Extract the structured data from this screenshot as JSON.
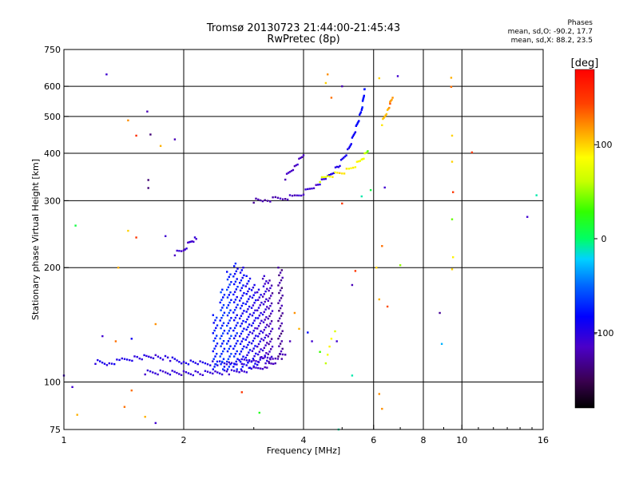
{
  "header": {
    "title_line1": "Tromsø 20130723 21:44:00-21:45:43",
    "title_line2": "RwPretec (8p)"
  },
  "stats": {
    "heading": "Phases",
    "line_o": "mean, sd,O: -90.2, 17.7",
    "line_x": "mean, sd,X:  88.2, 23.5"
  },
  "chart_data": {
    "type": "scatter",
    "title": "Tromsø 20130723 21:44:00-21:45:43",
    "subtitle": "RwPretec (8p)",
    "xlabel": "Frequency [MHz]",
    "ylabel": "Stationary phase Virtual Height [km]",
    "x_scale": "log",
    "y_scale": "log",
    "xlim": [
      1,
      16
    ],
    "ylim": [
      75,
      750
    ],
    "x_ticks": [
      1,
      2,
      4,
      6,
      8,
      10,
      16
    ],
    "x_tick_labels": [
      "1",
      "2",
      "4",
      "6",
      "8",
      "10",
      "16"
    ],
    "x_gridlines": [
      2,
      4,
      6,
      8,
      10
    ],
    "y_ticks": [
      75,
      100,
      200,
      300,
      400,
      500,
      600,
      750
    ],
    "y_tick_labels": [
      "75",
      "100",
      "200",
      "300",
      "400",
      "500",
      "600",
      "750"
    ],
    "y_gridlines": [
      100,
      200,
      300,
      400,
      500,
      600
    ],
    "colorbar": {
      "label": "[deg]",
      "range": [
        -180,
        180
      ],
      "ticks": [
        100,
        0,
        -100
      ],
      "tick_labels": [
        "100",
        "0",
        "-100"
      ]
    },
    "traces": [
      {
        "name": "E-region trace (O mode)",
        "x": [
          1.2,
          1.3,
          1.4,
          1.55,
          1.7,
          1.85,
          2.0,
          2.2,
          2.4,
          2.6,
          2.8,
          3.0,
          3.2,
          3.4,
          3.6
        ],
        "y": [
          113,
          112,
          114,
          116,
          117,
          115,
          113,
          112,
          112,
          112,
          113,
          114,
          115,
          116,
          118
        ],
        "phase": [
          -95,
          -95,
          -95,
          -100,
          -105,
          -100,
          -95,
          -95,
          -100,
          -105,
          -105,
          -110,
          -110,
          -115,
          -120
        ]
      },
      {
        "name": "Lower band trace",
        "x": [
          1.6,
          1.8,
          2.0,
          2.2,
          2.4,
          2.6,
          2.8,
          3.0,
          3.2,
          3.4
        ],
        "y": [
          106,
          106,
          105.5,
          105.5,
          106,
          106,
          107,
          108,
          110,
          112
        ],
        "phase": [
          -105,
          -105,
          -105,
          -105,
          -105,
          -105,
          -108,
          -110,
          -115,
          -120
        ]
      },
      {
        "name": "Es spread (vertical streaks)",
        "x": [
          2.4,
          2.5,
          2.6,
          2.7,
          2.8,
          2.9,
          3.0,
          3.1,
          3.2,
          3.3,
          3.5
        ],
        "y_min": [
          108,
          108,
          108,
          108,
          108,
          109,
          110,
          111,
          112,
          113,
          115
        ],
        "y_max": [
          150,
          175,
          195,
          205,
          200,
          190,
          180,
          175,
          190,
          185,
          200
        ],
        "phase": [
          -75,
          -70,
          -70,
          -80,
          -85,
          -90,
          -95,
          -105,
          -110,
          -120,
          -130
        ]
      },
      {
        "name": "F1 cusp",
        "x": [
          1.9,
          2.0,
          2.05,
          2.1,
          2.15
        ],
        "y": [
          218,
          222,
          230,
          236,
          238
        ],
        "phase": [
          -110,
          -110,
          -110,
          -110,
          -110
        ]
      },
      {
        "name": "F2 trace (O mode)",
        "x": [
          3.0,
          3.2,
          3.4,
          3.6,
          3.8,
          4.0,
          4.3,
          4.6,
          4.9,
          5.2,
          5.4,
          5.6,
          5.7
        ],
        "y": [
          300,
          301,
          303,
          305,
          308,
          315,
          330,
          345,
          370,
          410,
          460,
          520,
          590
        ],
        "phase": [
          -125,
          -125,
          -120,
          -120,
          -115,
          -110,
          -110,
          -100,
          -95,
          -90,
          -85,
          -80,
          -75
        ]
      },
      {
        "name": "F2 upper branch",
        "x": [
          3.6,
          3.8,
          4.0
        ],
        "y": [
          345,
          370,
          395
        ],
        "phase": [
          -115,
          -115,
          -115
        ]
      },
      {
        "name": "X-mode trace",
        "x": [
          4.4,
          4.6,
          4.8,
          5.0,
          5.2,
          5.4,
          5.6,
          5.7,
          5.8
        ],
        "y": [
          340,
          348,
          352,
          356,
          362,
          372,
          385,
          395,
          405
        ],
        "phase": [
          70,
          80,
          90,
          100,
          85,
          90,
          80,
          75,
          30
        ]
      },
      {
        "name": "X-mode high branch",
        "x": [
          6.3,
          6.5,
          6.7
        ],
        "y": [
          480,
          520,
          560
        ],
        "phase": [
          100,
          110,
          120
        ]
      }
    ],
    "scatter_points": [
      {
        "x": 1.28,
        "y": 645,
        "phase": -110
      },
      {
        "x": 1.62,
        "y": 515,
        "phase": -120
      },
      {
        "x": 1.65,
        "y": 448,
        "phase": -140
      },
      {
        "x": 1.9,
        "y": 435,
        "phase": -120
      },
      {
        "x": 1.45,
        "y": 488,
        "phase": 120
      },
      {
        "x": 1.52,
        "y": 445,
        "phase": 155
      },
      {
        "x": 1.75,
        "y": 418,
        "phase": 110
      },
      {
        "x": 1.63,
        "y": 340,
        "phase": -140
      },
      {
        "x": 1.63,
        "y": 324,
        "phase": -140
      },
      {
        "x": 1.07,
        "y": 258,
        "phase": 10
      },
      {
        "x": 1.45,
        "y": 250,
        "phase": 100
      },
      {
        "x": 1.52,
        "y": 240,
        "phase": 150
      },
      {
        "x": 1.8,
        "y": 242,
        "phase": -110
      },
      {
        "x": 1.37,
        "y": 200,
        "phase": 110
      },
      {
        "x": 1.25,
        "y": 132,
        "phase": -110
      },
      {
        "x": 1.35,
        "y": 128,
        "phase": 130
      },
      {
        "x": 1.48,
        "y": 130,
        "phase": -90
      },
      {
        "x": 1.7,
        "y": 142,
        "phase": 120
      },
      {
        "x": 1.05,
        "y": 97,
        "phase": -110
      },
      {
        "x": 1.08,
        "y": 82,
        "phase": 110
      },
      {
        "x": 1.42,
        "y": 86,
        "phase": 130
      },
      {
        "x": 1.48,
        "y": 95,
        "phase": 130
      },
      {
        "x": 1.6,
        "y": 81,
        "phase": 110
      },
      {
        "x": 1.7,
        "y": 78,
        "phase": -110
      },
      {
        "x": 1.0,
        "y": 104,
        "phase": -110
      },
      {
        "x": 2.8,
        "y": 94,
        "phase": 150
      },
      {
        "x": 3.1,
        "y": 83,
        "phase": 20
      },
      {
        "x": 4.9,
        "y": 75,
        "phase": -10
      },
      {
        "x": 4.6,
        "y": 645,
        "phase": 120
      },
      {
        "x": 4.55,
        "y": 612,
        "phase": 100
      },
      {
        "x": 4.7,
        "y": 560,
        "phase": 130
      },
      {
        "x": 5.0,
        "y": 600,
        "phase": -120
      },
      {
        "x": 6.2,
        "y": 630,
        "phase": 100
      },
      {
        "x": 6.9,
        "y": 638,
        "phase": -110
      },
      {
        "x": 6.6,
        "y": 540,
        "phase": 140
      },
      {
        "x": 9.4,
        "y": 632,
        "phase": 110
      },
      {
        "x": 9.4,
        "y": 598,
        "phase": 130
      },
      {
        "x": 9.45,
        "y": 445,
        "phase": 100
      },
      {
        "x": 9.45,
        "y": 380,
        "phase": 100
      },
      {
        "x": 9.5,
        "y": 316,
        "phase": 150
      },
      {
        "x": 9.45,
        "y": 268,
        "phase": 40
      },
      {
        "x": 9.5,
        "y": 213,
        "phase": 90
      },
      {
        "x": 9.45,
        "y": 198,
        "phase": 100
      },
      {
        "x": 10.6,
        "y": 402,
        "phase": 150
      },
      {
        "x": 15.4,
        "y": 310,
        "phase": -10
      },
      {
        "x": 14.6,
        "y": 272,
        "phase": -110
      },
      {
        "x": 5.4,
        "y": 196,
        "phase": 150
      },
      {
        "x": 5.3,
        "y": 180,
        "phase": -120
      },
      {
        "x": 6.1,
        "y": 200,
        "phase": 100
      },
      {
        "x": 6.3,
        "y": 228,
        "phase": 130
      },
      {
        "x": 6.2,
        "y": 165,
        "phase": 110
      },
      {
        "x": 6.5,
        "y": 158,
        "phase": 140
      },
      {
        "x": 7.0,
        "y": 203,
        "phase": 50
      },
      {
        "x": 8.8,
        "y": 152,
        "phase": -130
      },
      {
        "x": 8.9,
        "y": 126,
        "phase": -30
      },
      {
        "x": 6.2,
        "y": 93,
        "phase": 120
      },
      {
        "x": 6.3,
        "y": 85,
        "phase": 120
      },
      {
        "x": 4.1,
        "y": 135,
        "phase": -80
      },
      {
        "x": 4.2,
        "y": 128,
        "phase": -110
      },
      {
        "x": 3.7,
        "y": 128,
        "phase": -120
      },
      {
        "x": 3.9,
        "y": 138,
        "phase": 110
      },
      {
        "x": 3.8,
        "y": 152,
        "phase": 120
      },
      {
        "x": 4.6,
        "y": 118,
        "phase": 80
      },
      {
        "x": 4.65,
        "y": 124,
        "phase": 90
      },
      {
        "x": 4.7,
        "y": 130,
        "phase": 85
      },
      {
        "x": 4.55,
        "y": 112,
        "phase": 60
      },
      {
        "x": 4.8,
        "y": 136,
        "phase": 70
      },
      {
        "x": 4.85,
        "y": 128,
        "phase": -110
      },
      {
        "x": 4.4,
        "y": 120,
        "phase": 30
      },
      {
        "x": 5.3,
        "y": 104,
        "phase": -10
      },
      {
        "x": 5.6,
        "y": 308,
        "phase": -10
      },
      {
        "x": 5.9,
        "y": 320,
        "phase": 10
      },
      {
        "x": 5.0,
        "y": 295,
        "phase": 150
      },
      {
        "x": 6.4,
        "y": 325,
        "phase": -110
      }
    ]
  }
}
